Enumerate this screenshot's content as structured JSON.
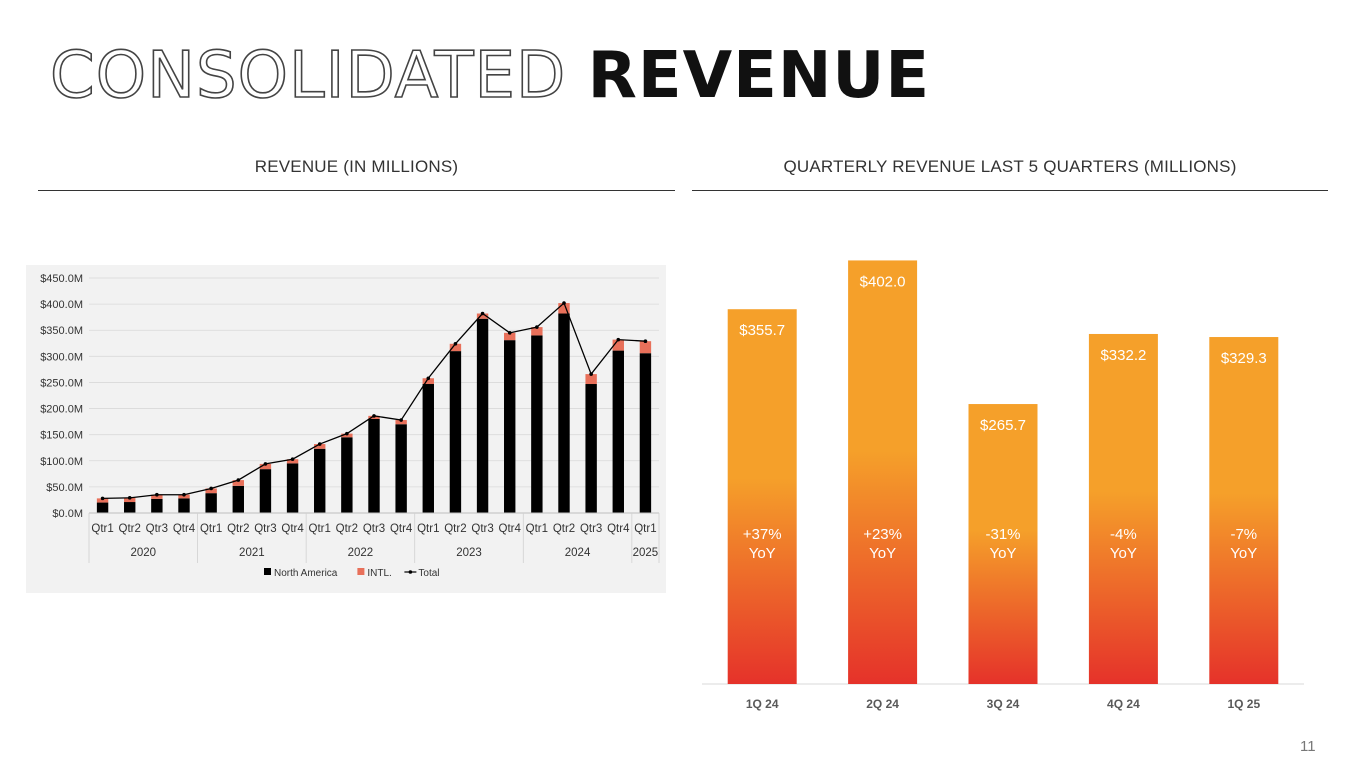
{
  "slide": {
    "title_outline": "CONSOLIDATED",
    "title_solid": "REVENUE",
    "left_section_title": "REVENUE (IN MILLIONS)",
    "right_section_title": "QUARTERLY REVENUE LAST 5 QUARTERS (MILLIONS)",
    "page_number": "11"
  },
  "colors": {
    "north_america": "#000000",
    "intl": "#E8705A",
    "total_line": "#000000",
    "bar_top": "#F5A02A",
    "bar_bottom": "#E5322A",
    "grid": "#D9D9D9",
    "left_panel_bg": "#F2F2F2"
  },
  "chart_data": [
    {
      "type": "bar",
      "stacked": true,
      "title": "REVENUE (IN MILLIONS)",
      "categories": [
        "Qtr1",
        "Qtr2",
        "Qtr3",
        "Qtr4",
        "Qtr1",
        "Qtr2",
        "Qtr3",
        "Qtr4",
        "Qtr1",
        "Qtr2",
        "Qtr3",
        "Qtr4",
        "Qtr1",
        "Qtr2",
        "Qtr3",
        "Qtr4",
        "Qtr1",
        "Qtr2",
        "Qtr3",
        "Qtr4",
        "Qtr1"
      ],
      "year_groups": [
        {
          "label": "2020",
          "count": 4
        },
        {
          "label": "2021",
          "count": 4
        },
        {
          "label": "2022",
          "count": 4
        },
        {
          "label": "2023",
          "count": 4
        },
        {
          "label": "2024",
          "count": 4
        },
        {
          "label": "2025",
          "count": 1
        }
      ],
      "series": [
        {
          "name": "North America",
          "values": [
            20,
            21,
            27,
            28,
            38,
            52,
            84,
            95,
            123,
            145,
            180,
            170,
            247,
            310,
            372,
            331,
            340,
            382,
            247,
            311,
            306
          ]
        },
        {
          "name": "INTL.",
          "values": [
            8,
            8,
            8,
            7,
            9,
            11,
            10,
            8,
            9,
            7,
            6,
            8,
            11,
            14,
            10,
            14,
            16,
            20,
            19,
            21,
            23
          ]
        },
        {
          "name": "Total",
          "values": [
            28,
            29,
            35,
            35,
            47,
            63,
            94,
            103,
            132,
            152,
            186,
            178,
            258,
            324,
            382,
            345,
            356,
            402,
            266,
            332,
            329
          ]
        }
      ],
      "y_ticks": [
        "$0.0M",
        "$50.0M",
        "$100.0M",
        "$150.0M",
        "$200.0M",
        "$250.0M",
        "$300.0M",
        "$350.0M",
        "$400.0M",
        "$450.0M"
      ],
      "ylim": [
        0,
        450
      ],
      "legend": [
        "North America",
        "INTL.",
        "Total"
      ],
      "legend_position": "bottom",
      "grid": true
    },
    {
      "type": "bar",
      "title": "QUARTERLY REVENUE LAST 5 QUARTERS (MILLIONS)",
      "categories": [
        "1Q 24",
        "2Q 24",
        "3Q 24",
        "4Q 24",
        "1Q 25"
      ],
      "values": [
        355.7,
        402.0,
        265.7,
        332.2,
        329.3
      ],
      "value_labels": [
        "$355.7",
        "$402.0",
        "$265.7",
        "$332.2",
        "$329.3"
      ],
      "yoy_pct": [
        "+37%",
        "+23%",
        "-31%",
        "-4%",
        "-7%"
      ],
      "yoy_suffix": "YoY",
      "ylim": [
        0,
        410
      ],
      "grid": false
    }
  ]
}
